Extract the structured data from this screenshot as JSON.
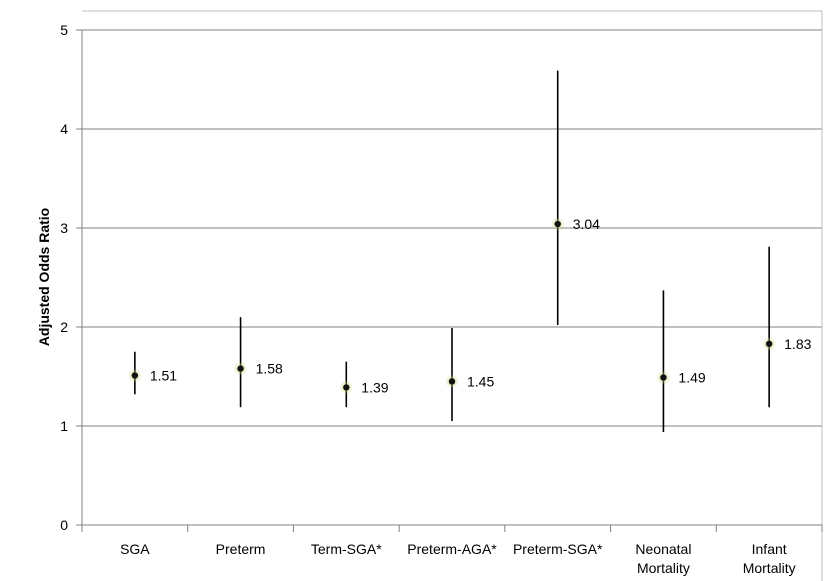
{
  "chart_data": {
    "type": "scatter",
    "title": "",
    "xlabel": "",
    "ylabel": "Adjusted Odds Ratio",
    "ylim": [
      0,
      5
    ],
    "yticks": [
      0,
      1,
      2,
      3,
      4,
      5
    ],
    "grid": true,
    "legend": "none",
    "categories": [
      [
        "SGA"
      ],
      [
        "Preterm"
      ],
      [
        "Term-SGA*"
      ],
      [
        "Preterm-AGA*"
      ],
      [
        "Preterm-SGA*"
      ],
      [
        "Neonatal",
        "Mortality"
      ],
      [
        "Infant",
        "Mortality"
      ]
    ],
    "values": [
      1.51,
      1.58,
      1.39,
      1.45,
      3.04,
      1.49,
      1.83
    ],
    "ci_lower": [
      1.32,
      1.19,
      1.19,
      1.05,
      2.02,
      0.94,
      1.19
    ],
    "ci_upper": [
      1.75,
      2.1,
      1.65,
      1.99,
      4.59,
      2.37,
      2.81
    ],
    "value_labels": [
      "1.51",
      "1.58",
      "1.39",
      "1.45",
      "3.04",
      "1.49",
      "1.83"
    ],
    "colors": {
      "axis": "#808080",
      "grid": "#808080",
      "error_bar": "#000000",
      "marker_fill": "#111111",
      "marker_glow": "#c6d67a"
    }
  }
}
